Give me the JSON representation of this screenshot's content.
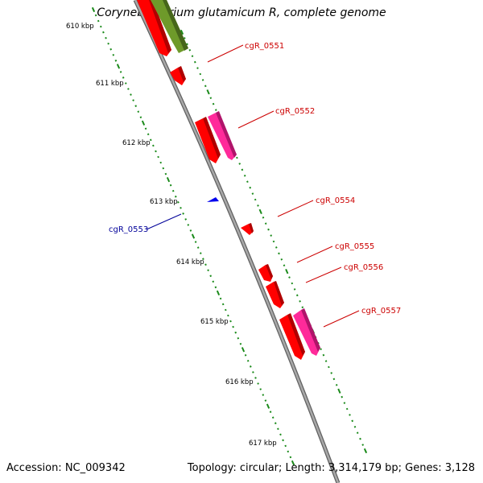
{
  "title": "Corynebacterium glutamicum R, complete genome",
  "footer": {
    "accession": "Accession: NC_009342",
    "topology": "Topology: circular; Length: 3,314,179 bp; Genes: 3,128"
  },
  "colors": {
    "backbone": "#8c8c8c",
    "tick": "#1a8a1a",
    "gene_red": "#ff0000",
    "gene_pink": "#ff2a9a",
    "gene_olive": "#6e9a2a",
    "gene_blue": "#0000ee",
    "label_red": "#cc0000",
    "label_blue": "#000099"
  },
  "scale_labels": [
    "610 kbp",
    "611 kbp",
    "612 kbp",
    "613 kbp",
    "614 kbp",
    "615 kbp",
    "616 kbp",
    "617 kbp"
  ],
  "gene_labels": [
    {
      "name": "cgR_0551",
      "color": "red"
    },
    {
      "name": "cgR_0552",
      "color": "red"
    },
    {
      "name": "cgR_0554",
      "color": "red"
    },
    {
      "name": "cgR_0553",
      "color": "blue"
    },
    {
      "name": "cgR_0555",
      "color": "red"
    },
    {
      "name": "cgR_0556",
      "color": "red"
    },
    {
      "name": "cgR_0557",
      "color": "red"
    }
  ]
}
